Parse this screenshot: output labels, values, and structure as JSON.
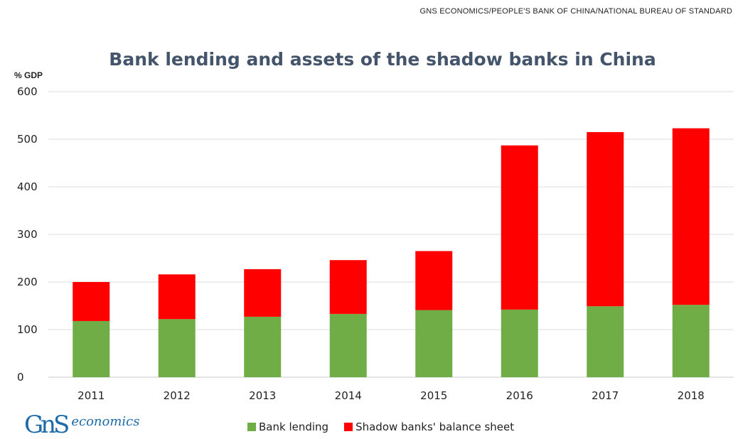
{
  "source_text": "GNS ECONOMICS/PEOPLE'S BANK OF CHINA/NATIONAL BUREAU OF STANDARD",
  "logo": {
    "mark": "GnS",
    "text": "economics"
  },
  "chart_data": {
    "type": "bar",
    "stacked": true,
    "title": "Bank lending and assets of the shadow banks in China",
    "ylabel": "% GDP",
    "xlabel": "",
    "ylim": [
      0,
      600
    ],
    "yticks": [
      0,
      100,
      200,
      300,
      400,
      500,
      600
    ],
    "grid": true,
    "legend_position": "bottom",
    "categories": [
      "2011",
      "2012",
      "2013",
      "2014",
      "2015",
      "2016",
      "2017",
      "2018"
    ],
    "series": [
      {
        "name": "Bank lending",
        "color": "#70ad47",
        "values": [
          118,
          122,
          127,
          133,
          141,
          142,
          149,
          152
        ]
      },
      {
        "name": "Shadow banks' balance sheet",
        "color": "#ff0000",
        "values": [
          82,
          94,
          100,
          113,
          124,
          345,
          366,
          371
        ]
      }
    ]
  }
}
